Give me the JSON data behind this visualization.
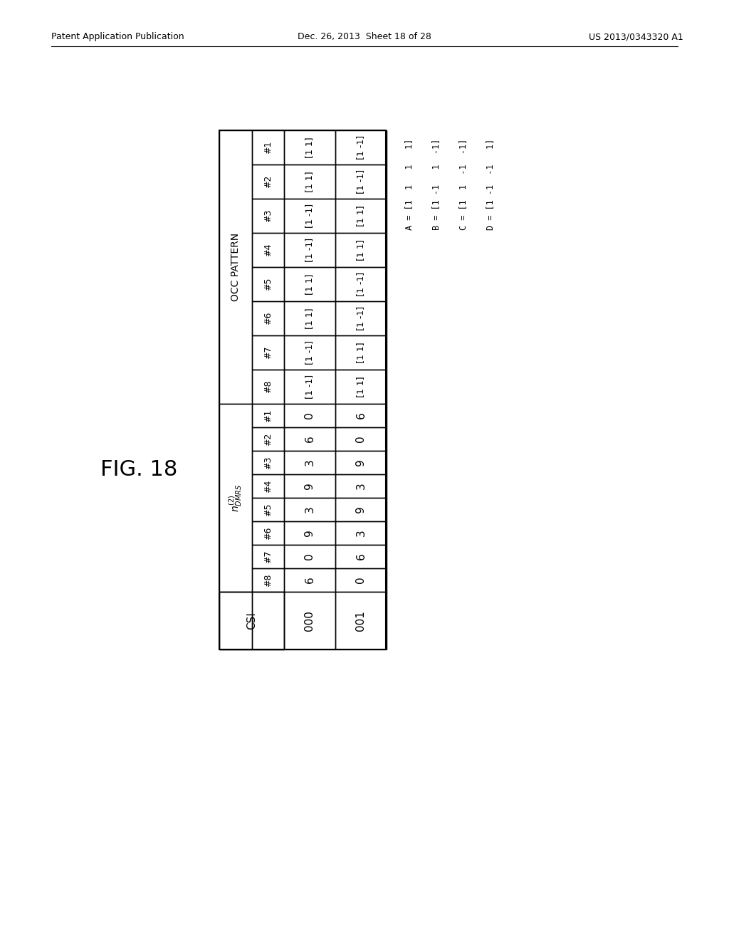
{
  "patent_header": "Patent Application Publication",
  "patent_date": "Dec. 26, 2013  Sheet 18 of 28",
  "patent_num": "US 2013/0343320 A1",
  "background_color": "#ffffff",
  "fig_label": "FIG. 18",
  "csi_label": "CSI",
  "csi_values": [
    "000",
    "001"
  ],
  "ndmrs_label": "n",
  "ndmrs_sup": "(2)",
  "ndmrs_sub": "DMRS",
  "ndmrs_cols": [
    "#1",
    "#2",
    "#3",
    "#4",
    "#5",
    "#6",
    "#7",
    "#8"
  ],
  "ndmrs_row0": [
    "0",
    "6",
    "3",
    "9",
    "3",
    "9",
    "0",
    "6"
  ],
  "ndmrs_row1": [
    "6",
    "0",
    "9",
    "3",
    "9",
    "3",
    "6",
    "0"
  ],
  "occ_label": "OCC PATTERN",
  "occ_cols": [
    "#1",
    "#2",
    "#3",
    "#4",
    "#5",
    "#6",
    "#7",
    "#8"
  ],
  "occ_row0": [
    "[1 1]",
    "[1 1]",
    "[1 -1]",
    "[1 -1]",
    "[1 1]",
    "[1 1]",
    "[1 -1]",
    "[1 -1]"
  ],
  "occ_row1": [
    "[1 -1]",
    "[1 -1]",
    "[1 1]",
    "[1 1]",
    "[1 -1]",
    "[1 -1]",
    "[1 1]",
    "[1 1]"
  ],
  "legend_A": "A = [1  1   1   1]",
  "legend_B": "B = [1 -1   1  -1]",
  "legend_C": "C = [1  1  -1  -1]",
  "legend_D": "D = [1 -1  -1   1]"
}
